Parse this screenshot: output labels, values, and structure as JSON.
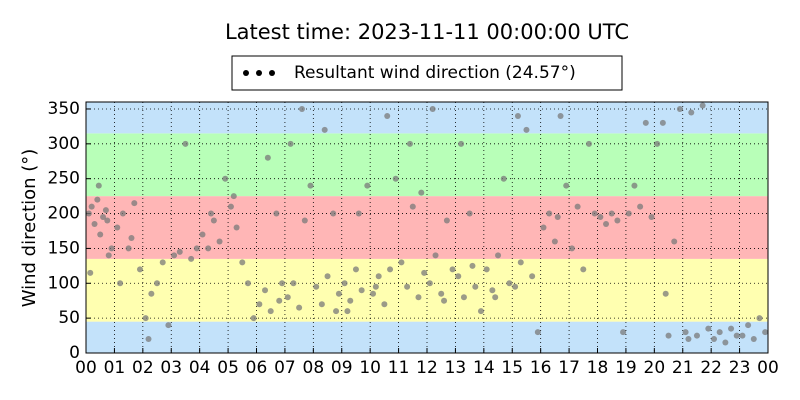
{
  "chart_data": {
    "type": "scatter",
    "title": "Latest time: 2023-11-11 00:00:00 UTC",
    "y_label": "Wind direction (°)",
    "legend": "upper center",
    "grid": true,
    "bands": [
      {
        "from": 0,
        "to": 45,
        "color": "#c3e2fa"
      },
      {
        "from": 45,
        "to": 135,
        "color": "#ffffb0"
      },
      {
        "from": 135,
        "to": 225,
        "color": "#ffb6b6"
      },
      {
        "from": 225,
        "to": 315,
        "color": "#b8ffb8"
      },
      {
        "from": 315,
        "to": 360,
        "color": "#c3e2fa"
      }
    ],
    "xlim": [
      0,
      24
    ],
    "xticks": [
      {
        "value": 0,
        "label": "00"
      },
      {
        "value": 1,
        "label": "01"
      },
      {
        "value": 2,
        "label": "02"
      },
      {
        "value": 3,
        "label": "03"
      },
      {
        "value": 4,
        "label": "04"
      },
      {
        "value": 5,
        "label": "05"
      },
      {
        "value": 6,
        "label": "06"
      },
      {
        "value": 7,
        "label": "07"
      },
      {
        "value": 8,
        "label": "08"
      },
      {
        "value": 9,
        "label": "09"
      },
      10,
      11,
      12,
      13,
      14,
      15,
      16,
      17,
      18,
      19,
      20,
      21,
      22,
      23,
      {
        "value": 24,
        "label": "00"
      }
    ],
    "ylim": [
      0,
      360
    ],
    "yticks": [
      0,
      50,
      100,
      150,
      200,
      250,
      300,
      350
    ],
    "series": [
      {
        "name": "Resultant wind direction (24.57°)",
        "color": "#7a7a7a",
        "opacity": 0.75,
        "x": [
          0.1,
          0.2,
          0.3,
          0.4,
          0.5,
          0.6,
          0.7,
          0.8,
          0.9,
          0.15,
          0.45,
          0.75,
          1.1,
          1.3,
          1.5,
          1.7,
          1.9,
          1.2,
          1.6,
          2.1,
          2.3,
          2.5,
          2.7,
          2.9,
          2.2,
          3.1,
          3.3,
          3.5,
          3.7,
          3.9,
          4.1,
          4.3,
          4.5,
          4.7,
          4.9,
          4.4,
          5.1,
          5.3,
          5.5,
          5.7,
          5.9,
          5.2,
          6.1,
          6.3,
          6.5,
          6.7,
          6.9,
          6.4,
          6.8,
          7.1,
          7.3,
          7.5,
          7.7,
          7.9,
          7.2,
          7.6,
          8.1,
          8.3,
          8.5,
          8.7,
          8.9,
          8.4,
          8.8,
          9.1,
          9.3,
          9.5,
          9.7,
          9.9,
          9.2,
          9.6,
          10.1,
          10.3,
          10.5,
          10.7,
          10.9,
          10.2,
          10.6,
          11.1,
          11.3,
          11.5,
          11.7,
          11.9,
          11.4,
          11.8,
          12.1,
          12.3,
          12.5,
          12.7,
          12.9,
          12.2,
          12.6,
          13.1,
          13.3,
          13.5,
          13.7,
          13.9,
          13.2,
          13.6,
          14.1,
          14.3,
          14.5,
          14.7,
          14.9,
          14.4,
          15.1,
          15.3,
          15.5,
          15.7,
          15.9,
          15.2,
          16.1,
          16.3,
          16.5,
          16.7,
          16.9,
          16.6,
          17.1,
          17.3,
          17.5,
          17.7,
          17.9,
          18.1,
          18.3,
          18.5,
          18.7,
          18.9,
          19.1,
          19.3,
          19.5,
          19.7,
          19.9,
          20.1,
          20.3,
          20.5,
          20.7,
          20.9,
          20.4,
          21.1,
          21.3,
          21.5,
          21.7,
          21.9,
          21.2,
          22.1,
          22.3,
          22.5,
          22.7,
          22.9,
          23.1,
          23.3,
          23.5,
          23.7,
          23.9
        ],
        "values": [
          200,
          210,
          185,
          220,
          170,
          195,
          205,
          140,
          150,
          115,
          240,
          190,
          180,
          200,
          150,
          215,
          120,
          100,
          165,
          50,
          85,
          100,
          130,
          40,
          20,
          140,
          145,
          300,
          135,
          150,
          170,
          150,
          190,
          160,
          250,
          200,
          210,
          180,
          130,
          100,
          50,
          225,
          70,
          90,
          60,
          200,
          100,
          280,
          75,
          80,
          100,
          65,
          190,
          240,
          300,
          350,
          95,
          70,
          110,
          200,
          85,
          320,
          60,
          100,
          75,
          120,
          90,
          240,
          60,
          200,
          85,
          110,
          70,
          120,
          250,
          95,
          340,
          130,
          95,
          210,
          80,
          115,
          300,
          230,
          100,
          140,
          85,
          190,
          120,
          350,
          75,
          110,
          80,
          200,
          95,
          60,
          300,
          125,
          120,
          90,
          140,
          250,
          100,
          80,
          95,
          130,
          320,
          110,
          30,
          340,
          180,
          200,
          160,
          340,
          240,
          195,
          150,
          210,
          120,
          300,
          200,
          195,
          185,
          200,
          190,
          30,
          200,
          240,
          210,
          330,
          195,
          300,
          330,
          25,
          160,
          350,
          85,
          30,
          345,
          25,
          355,
          35,
          20,
          20,
          30,
          15,
          35,
          25,
          25,
          40,
          20,
          50,
          30
        ]
      }
    ]
  }
}
